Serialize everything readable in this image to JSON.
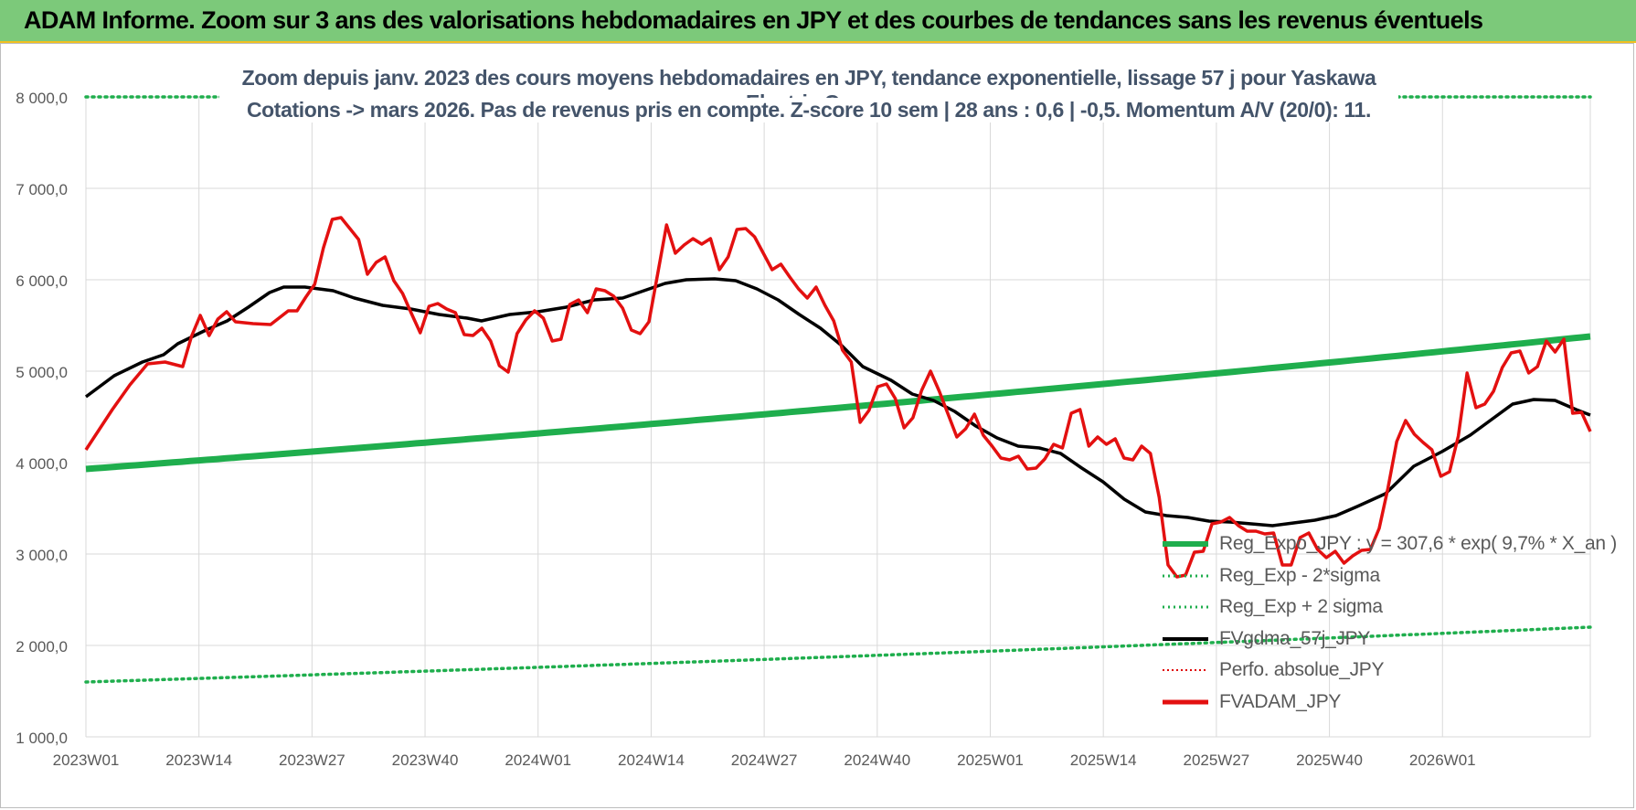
{
  "banner": {
    "title": "ADAM Informe. Zoom sur 3 ans des valorisations hebdomadaires en JPY et des courbes de tendances sans les revenus éventuels"
  },
  "chart_data": {
    "type": "line",
    "title_line1": "Zoom depuis janv. 2023 des cours moyens hebdomadaires en JPY, tendance exponentielle, lissage 57 j pour Yaskawa Electric Corp",
    "title_line2": "Cotations -> mars 2026. Pas de revenus pris en compte. Z-score 10 sem | 28 ans : 0,6 | -0,5. Momentum A/V (20/0): 11.",
    "xlabel": "",
    "ylabel": "",
    "ylim": [
      1000,
      8000
    ],
    "yticks": [
      "1 000,0",
      "2 000,0",
      "3 000,0",
      "4 000,0",
      "5 000,0",
      "6 000,0",
      "7 000,0",
      "8 000,0"
    ],
    "ytick_values": [
      1000,
      2000,
      3000,
      4000,
      5000,
      6000,
      7000,
      8000
    ],
    "xticks": [
      "2023W01",
      "2023W14",
      "2023W27",
      "2023W40",
      "2024W01",
      "2024W14",
      "2024W27",
      "2024W40",
      "2025W01",
      "2025W14",
      "2025W27",
      "2025W40",
      "2026W01"
    ],
    "x_week_count": 166,
    "grid": true,
    "legend_position": "bottom-right",
    "colors": {
      "reg_exp": "#1fae4d",
      "sigma": "#1fae4d",
      "fvgdma": "#000000",
      "perfo": "#e00000",
      "fvadam": "#e31010"
    },
    "series": [
      {
        "name": "Reg_Expo_JPY : y = 307,6 * exp( 9,7% *  X_an )",
        "style": "thick",
        "start": 3930,
        "end": 5380
      },
      {
        "name": "Reg_Exp - 2*sigma",
        "style": "dotted",
        "start": 1600,
        "end": 2200
      },
      {
        "name": "Reg_Exp + 2 sigma",
        "style": "dotted",
        "start": 8000,
        "end": 8000
      },
      {
        "name": "FVgdma_57j_JPY",
        "style": "solid",
        "points": [
          [
            0,
            4720
          ],
          [
            4,
            4950
          ],
          [
            8,
            5100
          ],
          [
            11,
            5180
          ],
          [
            13,
            5300
          ],
          [
            17,
            5450
          ],
          [
            20,
            5550
          ],
          [
            23,
            5700
          ],
          [
            26,
            5860
          ],
          [
            28,
            5920
          ],
          [
            31,
            5920
          ],
          [
            35,
            5880
          ],
          [
            38,
            5800
          ],
          [
            42,
            5720
          ],
          [
            46,
            5680
          ],
          [
            50,
            5620
          ],
          [
            54,
            5580
          ],
          [
            56,
            5550
          ],
          [
            60,
            5620
          ],
          [
            64,
            5650
          ],
          [
            68,
            5700
          ],
          [
            72,
            5780
          ],
          [
            76,
            5800
          ],
          [
            79,
            5880
          ],
          [
            82,
            5960
          ],
          [
            85,
            6000
          ],
          [
            89,
            6010
          ],
          [
            92,
            5990
          ],
          [
            95,
            5900
          ],
          [
            98,
            5780
          ],
          [
            101,
            5620
          ],
          [
            104,
            5470
          ],
          [
            107,
            5280
          ],
          [
            110,
            5050
          ],
          [
            114,
            4900
          ],
          [
            117,
            4750
          ],
          [
            120,
            4680
          ],
          [
            123,
            4560
          ],
          [
            126,
            4400
          ],
          [
            129,
            4270
          ],
          [
            132,
            4180
          ],
          [
            135,
            4160
          ],
          [
            138,
            4100
          ],
          [
            141,
            3940
          ],
          [
            144,
            3790
          ],
          [
            147,
            3600
          ],
          [
            150,
            3460
          ],
          [
            153,
            3420
          ],
          [
            156,
            3400
          ],
          [
            159,
            3360
          ],
          [
            162,
            3350
          ],
          [
            165,
            3330
          ],
          [
            168,
            3310
          ],
          [
            171,
            3340
          ],
          [
            174,
            3370
          ],
          [
            177,
            3420
          ],
          [
            180,
            3520
          ],
          [
            184,
            3660
          ],
          [
            188,
            3960
          ],
          [
            192,
            4120
          ],
          [
            196,
            4300
          ],
          [
            199,
            4470
          ],
          [
            202,
            4640
          ],
          [
            205,
            4690
          ],
          [
            208,
            4680
          ],
          [
            211,
            4580
          ],
          [
            213,
            4520
          ]
        ]
      },
      {
        "name": "Perfo. absolue_JPY",
        "style": "dotted",
        "points": []
      },
      {
        "name": "FVADAM_JPY",
        "style": "solid",
        "points": [
          [
            0,
            4140
          ],
          [
            3,
            4580
          ],
          [
            5,
            4850
          ],
          [
            7,
            5080
          ],
          [
            9,
            5100
          ],
          [
            11,
            5050
          ],
          [
            12,
            5380
          ],
          [
            13,
            5610
          ],
          [
            14,
            5390
          ],
          [
            15,
            5570
          ],
          [
            16,
            5650
          ],
          [
            17,
            5540
          ],
          [
            19,
            5520
          ],
          [
            21,
            5510
          ],
          [
            23,
            5660
          ],
          [
            24,
            5660
          ],
          [
            25,
            5810
          ],
          [
            26,
            5950
          ],
          [
            27,
            6350
          ],
          [
            28,
            6660
          ],
          [
            29,
            6680
          ],
          [
            30,
            6560
          ],
          [
            31,
            6440
          ],
          [
            32,
            6060
          ],
          [
            33,
            6190
          ],
          [
            34,
            6250
          ],
          [
            35,
            5990
          ],
          [
            36,
            5850
          ],
          [
            37,
            5630
          ],
          [
            38,
            5420
          ],
          [
            39,
            5710
          ],
          [
            40,
            5740
          ],
          [
            41,
            5680
          ],
          [
            42,
            5640
          ],
          [
            43,
            5400
          ],
          [
            44,
            5390
          ],
          [
            45,
            5470
          ],
          [
            46,
            5330
          ],
          [
            47,
            5060
          ],
          [
            48,
            4990
          ],
          [
            49,
            5410
          ],
          [
            50,
            5560
          ],
          [
            51,
            5660
          ],
          [
            52,
            5580
          ],
          [
            53,
            5330
          ],
          [
            54,
            5350
          ],
          [
            55,
            5730
          ],
          [
            56,
            5780
          ],
          [
            57,
            5640
          ],
          [
            58,
            5900
          ],
          [
            59,
            5880
          ],
          [
            60,
            5820
          ],
          [
            61,
            5690
          ],
          [
            62,
            5450
          ],
          [
            63,
            5410
          ],
          [
            64,
            5540
          ],
          [
            65,
            6070
          ],
          [
            66,
            6600
          ],
          [
            67,
            6290
          ],
          [
            68,
            6380
          ],
          [
            69,
            6450
          ],
          [
            70,
            6390
          ],
          [
            71,
            6450
          ],
          [
            72,
            6110
          ],
          [
            73,
            6250
          ],
          [
            74,
            6550
          ],
          [
            75,
            6560
          ],
          [
            76,
            6470
          ],
          [
            77,
            6290
          ],
          [
            78,
            6110
          ],
          [
            79,
            6170
          ],
          [
            80,
            6030
          ],
          [
            81,
            5900
          ],
          [
            82,
            5800
          ],
          [
            83,
            5920
          ],
          [
            84,
            5720
          ],
          [
            85,
            5550
          ],
          [
            86,
            5230
          ],
          [
            87,
            5100
          ],
          [
            88,
            4440
          ],
          [
            89,
            4570
          ],
          [
            90,
            4830
          ],
          [
            91,
            4860
          ],
          [
            92,
            4700
          ],
          [
            93,
            4380
          ],
          [
            94,
            4490
          ],
          [
            95,
            4790
          ],
          [
            96,
            5000
          ],
          [
            97,
            4780
          ],
          [
            98,
            4530
          ],
          [
            99,
            4280
          ],
          [
            100,
            4370
          ],
          [
            101,
            4530
          ],
          [
            102,
            4300
          ],
          [
            103,
            4180
          ],
          [
            104,
            4050
          ],
          [
            105,
            4030
          ],
          [
            106,
            4070
          ],
          [
            107,
            3930
          ],
          [
            108,
            3940
          ],
          [
            109,
            4040
          ],
          [
            110,
            4200
          ],
          [
            111,
            4160
          ],
          [
            112,
            4540
          ],
          [
            113,
            4580
          ],
          [
            114,
            4180
          ],
          [
            115,
            4280
          ],
          [
            116,
            4200
          ],
          [
            117,
            4260
          ],
          [
            118,
            4050
          ],
          [
            119,
            4030
          ],
          [
            120,
            4180
          ],
          [
            121,
            4100
          ],
          [
            122,
            3620
          ],
          [
            123,
            2880
          ],
          [
            124,
            2750
          ],
          [
            125,
            2770
          ],
          [
            126,
            3020
          ],
          [
            127,
            3030
          ],
          [
            128,
            3330
          ],
          [
            129,
            3350
          ],
          [
            130,
            3400
          ],
          [
            131,
            3310
          ],
          [
            132,
            3250
          ],
          [
            133,
            3250
          ],
          [
            134,
            3220
          ],
          [
            135,
            3230
          ],
          [
            136,
            2880
          ],
          [
            137,
            2880
          ],
          [
            138,
            3180
          ],
          [
            139,
            3230
          ],
          [
            140,
            3050
          ],
          [
            141,
            2960
          ],
          [
            142,
            3030
          ],
          [
            143,
            2900
          ],
          [
            144,
            2980
          ],
          [
            145,
            3040
          ],
          [
            146,
            3050
          ],
          [
            147,
            3280
          ],
          [
            148,
            3720
          ],
          [
            149,
            4230
          ],
          [
            150,
            4460
          ],
          [
            151,
            4310
          ],
          [
            152,
            4220
          ],
          [
            153,
            4140
          ],
          [
            154,
            3850
          ],
          [
            155,
            3900
          ],
          [
            156,
            4290
          ],
          [
            157,
            4980
          ],
          [
            158,
            4600
          ],
          [
            159,
            4640
          ],
          [
            160,
            4780
          ],
          [
            161,
            5040
          ],
          [
            162,
            5200
          ],
          [
            163,
            5220
          ],
          [
            164,
            4980
          ],
          [
            165,
            5050
          ],
          [
            166,
            5330
          ],
          [
            167,
            5210
          ],
          [
            168,
            5350
          ],
          [
            169,
            4540
          ],
          [
            170,
            4550
          ],
          [
            171,
            4340
          ]
        ]
      }
    ]
  }
}
